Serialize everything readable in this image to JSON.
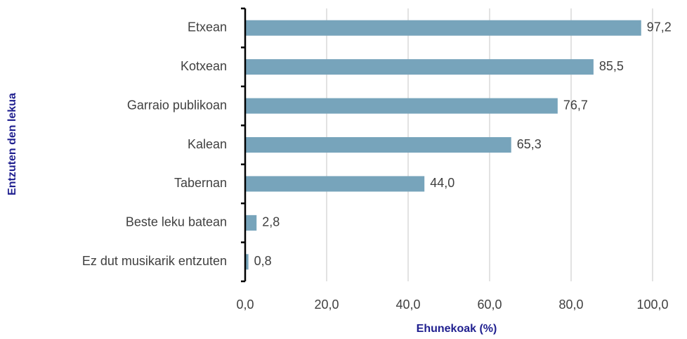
{
  "chart_data": {
    "type": "bar",
    "orientation": "horizontal",
    "xlabel": "Ehunekoak (%)",
    "ylabel": "Entzuten den lekua",
    "categories": [
      "Etxean",
      "Kotxean",
      "Garraio publikoan",
      "Kalean",
      "Tabernan",
      "Beste leku batean",
      "Ez dut musikarik entzuten"
    ],
    "values": [
      97.2,
      85.5,
      76.7,
      65.3,
      44.0,
      2.8,
      0.8
    ],
    "value_labels": [
      "97,2",
      "85,5",
      "76,7",
      "65,3",
      "44,0",
      "2,8",
      "0,8"
    ],
    "color": "#77a4bb",
    "xlim": [
      0,
      100
    ],
    "xticks": [
      {
        "value": 0,
        "label": "0,0"
      },
      {
        "value": 20,
        "label": "20,0"
      },
      {
        "value": 40,
        "label": "40,0"
      },
      {
        "value": 60,
        "label": "60,0"
      },
      {
        "value": 80,
        "label": "80,0"
      },
      {
        "value": 100,
        "label": "100,0"
      }
    ],
    "grid": true
  }
}
